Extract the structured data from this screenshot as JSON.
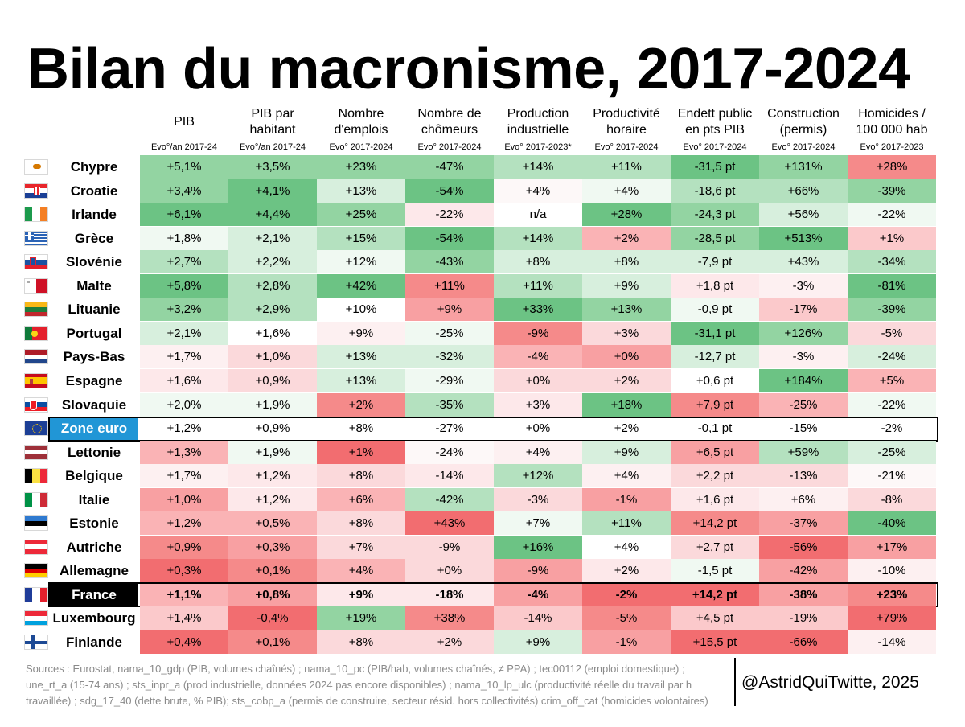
{
  "title": "Bilan du macronisme, 2017-2024",
  "chart_data": {
    "type": "table",
    "columns": [
      {
        "name": "PIB",
        "sub": "Evo°/an  2017-24"
      },
      {
        "name": "PIB par habitant",
        "sub": "Evo°/an  2017-24"
      },
      {
        "name": "Nombre d'emplois",
        "sub": "Evo° 2017-2024"
      },
      {
        "name": "Nombre de chômeurs",
        "sub": "Evo° 2017-2024"
      },
      {
        "name": "Production industrielle",
        "sub": "Evo° 2017-2023*"
      },
      {
        "name": "Productivité horaire",
        "sub": "Evo° 2017-2024"
      },
      {
        "name": "Endett public en pts PIB",
        "sub": "Evo° 2017-2024"
      },
      {
        "name": "Construction (permis)",
        "sub": "Evo° 2017-2024"
      },
      {
        "name": "Homicides / 100 000 hab",
        "sub": "Evo° 2017-2023"
      }
    ],
    "rows": [
      {
        "country": "Chypre",
        "flag": "cyprus-flag",
        "values": [
          "+5,1%",
          "+3,5%",
          "+23%",
          "-47%",
          "+14%",
          "+11%",
          "-31,5 pt",
          "+131%",
          "+28%"
        ],
        "colors": [
          "#93d4a2",
          "#93d4a2",
          "#93d4a2",
          "#93d4a2",
          "#b4e1bf",
          "#b4e1bf",
          "#6cc384",
          "#93d4a2",
          "#f58a8a"
        ]
      },
      {
        "country": "Croatie",
        "flag": "croatia-flag",
        "values": [
          "+3,4%",
          "+4,1%",
          "+13%",
          "-54%",
          "+4%",
          "+4%",
          "-18,6 pt",
          "+66%",
          "-39%"
        ],
        "colors": [
          "#93d4a2",
          "#6cc384",
          "#d7efdd",
          "#6cc384",
          "#fdf8f8",
          "#f0f9f2",
          "#b4e1bf",
          "#b4e1bf",
          "#93d4a2"
        ]
      },
      {
        "country": "Irlande",
        "flag": "ireland-flag",
        "values": [
          "+6,1%",
          "+4,4%",
          "+25%",
          "-22%",
          "n/a",
          "+28%",
          "-24,3 pt",
          "+56%",
          "-22%"
        ],
        "colors": [
          "#6cc384",
          "#6cc384",
          "#93d4a2",
          "#fde8ea",
          "#ffffff",
          "#6cc384",
          "#93d4a2",
          "#d7efdd",
          "#f0f9f2"
        ]
      },
      {
        "country": "Grèce",
        "flag": "greece-flag",
        "values": [
          "+1,8%",
          "+2,1%",
          "+15%",
          "-54%",
          "+14%",
          "+2%",
          "-28,5 pt",
          "+513%",
          "+1%"
        ],
        "colors": [
          "#f0f9f2",
          "#d7efdd",
          "#b4e1bf",
          "#6cc384",
          "#b4e1bf",
          "#fab3b5",
          "#93d4a2",
          "#6cc384",
          "#fbc9cb"
        ]
      },
      {
        "country": "Slovénie",
        "flag": "slovenia-flag",
        "values": [
          "+2,7%",
          "+2,2%",
          "+12%",
          "-43%",
          "+8%",
          "+8%",
          "-7,9 pt",
          "+43%",
          "-34%"
        ],
        "colors": [
          "#b4e1bf",
          "#d7efdd",
          "#f0f9f2",
          "#93d4a2",
          "#d7efdd",
          "#d7efdd",
          "#d7efdd",
          "#d7efdd",
          "#b4e1bf"
        ]
      },
      {
        "country": "Malte",
        "flag": "malta-flag",
        "values": [
          "+5,8%",
          "+2,8%",
          "+42%",
          "+11%",
          "+11%",
          "+9%",
          "+1,8 pt",
          "-3%",
          "-81%"
        ],
        "colors": [
          "#6cc384",
          "#b4e1bf",
          "#6cc384",
          "#f58a8a",
          "#b4e1bf",
          "#d7efdd",
          "#fde8ea",
          "#fdf0f1",
          "#6cc384"
        ]
      },
      {
        "country": "Lituanie",
        "flag": "lithuania-flag",
        "values": [
          "+3,2%",
          "+2,9%",
          "+10%",
          "+9%",
          "+33%",
          "+13%",
          "-0,9 pt",
          "-17%",
          "-39%"
        ],
        "colors": [
          "#93d4a2",
          "#b4e1bf",
          "#ffffff",
          "#f8a0a2",
          "#6cc384",
          "#93d4a2",
          "#f0f9f2",
          "#fbc9cb",
          "#93d4a2"
        ]
      },
      {
        "country": "Portugal",
        "flag": "portugal-flag",
        "values": [
          "+2,1%",
          "+1,6%",
          "+9%",
          "-25%",
          "-9%",
          "+3%",
          "-31,1 pt",
          "+126%",
          "-5%"
        ],
        "colors": [
          "#d7efdd",
          "#ffffff",
          "#fdf0f1",
          "#f0f9f2",
          "#f58a8a",
          "#fbd9db",
          "#6cc384",
          "#93d4a2",
          "#fbd9db"
        ]
      },
      {
        "country": "Pays-Bas",
        "flag": "netherlands-flag",
        "values": [
          "+1,7%",
          "+1,0%",
          "+13%",
          "-32%",
          "-4%",
          "+0%",
          "-12,7 pt",
          "-3%",
          "-24%"
        ],
        "colors": [
          "#fdf0f1",
          "#fbd9db",
          "#d7efdd",
          "#d7efdd",
          "#fab3b5",
          "#f8a0a2",
          "#d7efdd",
          "#fdf0f1",
          "#d7efdd"
        ]
      },
      {
        "country": "Espagne",
        "flag": "spain-flag",
        "values": [
          "+1,6%",
          "+0,9%",
          "+13%",
          "-29%",
          "+0%",
          "+2%",
          "+0,6 pt",
          "+184%",
          "+5%"
        ],
        "colors": [
          "#fde8ea",
          "#fbd9db",
          "#d7efdd",
          "#f0f9f2",
          "#fbd9db",
          "#fbd9db",
          "#ffffff",
          "#6cc384",
          "#fab3b5"
        ]
      },
      {
        "country": "Slovaquie",
        "flag": "slovakia-flag",
        "values": [
          "+2,0%",
          "+1,9%",
          "+2%",
          "-35%",
          "+3%",
          "+18%",
          "+7,9 pt",
          "-25%",
          "-22%"
        ],
        "colors": [
          "#f0f9f2",
          "#f0f9f2",
          "#f58a8a",
          "#b4e1bf",
          "#fde8ea",
          "#6cc384",
          "#f58a8a",
          "#fab3b5",
          "#f0f9f2"
        ]
      },
      {
        "country": "Zone euro",
        "flag": "eu-flag",
        "zone": true,
        "values": [
          "+1,2%",
          "+0,9%",
          "+8%",
          "-27%",
          "+0%",
          "+2%",
          "-0,1 pt",
          "-15%",
          "-2%"
        ],
        "colors": [
          "#ffffff",
          "#ffffff",
          "#ffffff",
          "#ffffff",
          "#ffffff",
          "#ffffff",
          "#ffffff",
          "#ffffff",
          "#ffffff"
        ]
      },
      {
        "country": "Lettonie",
        "flag": "latvia-flag",
        "values": [
          "+1,3%",
          "+1,9%",
          "+1%",
          "-24%",
          "+4%",
          "+9%",
          "+6,5 pt",
          "+59%",
          "-25%"
        ],
        "colors": [
          "#fab3b5",
          "#f0f9f2",
          "#f26d70",
          "#fdf8f8",
          "#fdf0f1",
          "#d7efdd",
          "#f8a0a2",
          "#b4e1bf",
          "#d7efdd"
        ]
      },
      {
        "country": "Belgique",
        "flag": "belgium-flag",
        "values": [
          "+1,7%",
          "+1,2%",
          "+8%",
          "-14%",
          "+12%",
          "+4%",
          "+2,2 pt",
          "-13%",
          "-21%"
        ],
        "colors": [
          "#fdf0f1",
          "#fde8ea",
          "#fbd9db",
          "#fde8ea",
          "#b4e1bf",
          "#fdf0f1",
          "#fbd9db",
          "#fbd9db",
          "#fdf8f8"
        ]
      },
      {
        "country": "Italie",
        "flag": "italy-flag",
        "values": [
          "+1,0%",
          "+1,2%",
          "+6%",
          "-42%",
          "-3%",
          "-1%",
          "+1,6 pt",
          "+6%",
          "-8%"
        ],
        "colors": [
          "#f8a0a2",
          "#fde8ea",
          "#fab3b5",
          "#b4e1bf",
          "#fbd9db",
          "#f8a0a2",
          "#fde8ea",
          "#fdf0f1",
          "#fbd9db"
        ]
      },
      {
        "country": "Estonie",
        "flag": "estonia-flag",
        "values": [
          "+1,2%",
          "+0,5%",
          "+8%",
          "+43%",
          "+7%",
          "+11%",
          "+14,2 pt",
          "-37%",
          "-40%"
        ],
        "colors": [
          "#fab3b5",
          "#fab3b5",
          "#fbd9db",
          "#f26d70",
          "#f0f9f2",
          "#b4e1bf",
          "#f58a8a",
          "#f8a0a2",
          "#6cc384"
        ]
      },
      {
        "country": "Autriche",
        "flag": "austria-flag",
        "values": [
          "+0,9%",
          "+0,3%",
          "+7%",
          "-9%",
          "+16%",
          "+4%",
          "+2,7 pt",
          "-56%",
          "+17%"
        ],
        "colors": [
          "#f58a8a",
          "#f8a0a2",
          "#fbd9db",
          "#fbd9db",
          "#6cc384",
          "#ffffff",
          "#fbd9db",
          "#f26d70",
          "#f8a0a2"
        ]
      },
      {
        "country": "Allemagne",
        "flag": "germany-flag",
        "values": [
          "+0,3%",
          "+0,1%",
          "+4%",
          "+0%",
          "-9%",
          "+2%",
          "-1,5 pt",
          "-42%",
          "-10%"
        ],
        "colors": [
          "#f26d70",
          "#f58a8a",
          "#fab3b5",
          "#fbd9db",
          "#f8a0a2",
          "#fde8ea",
          "#f0f9f2",
          "#f8a0a2",
          "#fdf0f1"
        ]
      },
      {
        "country": "France",
        "flag": "france-flag",
        "france": true,
        "values": [
          "+1,1%",
          "+0,8%",
          "+9%",
          "-18%",
          "-4%",
          "-2%",
          "+14,2 pt",
          "-38%",
          "+23%"
        ],
        "colors": [
          "#fab3b5",
          "#f8a0a2",
          "#fde8ea",
          "#fde8ea",
          "#f8a0a2",
          "#f26d70",
          "#f26d70",
          "#f8a0a2",
          "#f58a8a"
        ]
      },
      {
        "country": "Luxembourg",
        "flag": "luxembourg-flag",
        "values": [
          "+1,4%",
          "-0,4%",
          "+19%",
          "+38%",
          "-14%",
          "-5%",
          "+4,5 pt",
          "-19%",
          "+79%"
        ],
        "colors": [
          "#fbc9cb",
          "#f26d70",
          "#93d4a2",
          "#f58a8a",
          "#fbc9cb",
          "#f58a8a",
          "#fbc9cb",
          "#fbc9cb",
          "#f26d70"
        ]
      },
      {
        "country": "Finlande",
        "flag": "finland-flag",
        "values": [
          "+0,4%",
          "+0,1%",
          "+8%",
          "+2%",
          "+9%",
          "-1%",
          "+15,5 pt",
          "-66%",
          "-14%"
        ],
        "colors": [
          "#f26d70",
          "#f58a8a",
          "#fbd9db",
          "#fbd9db",
          "#d7efdd",
          "#f8a0a2",
          "#f26d70",
          "#f26d70",
          "#fdf0f1"
        ]
      }
    ]
  },
  "sources": "Sources : Eurostat, nama_10_gdp (PIB, volumes chaînés) ; nama_10_pc (PIB/hab, volumes chaînés, ≠ PPA) ; tec00112 (emploi domestique) ; une_rt_a (15-74 ans) ; sts_inpr_a (prod industrielle, données 2024 pas encore disponibles) ; nama_10_lp_ulc (productivité réelle du travail par h travaillée) ; sdg_17_40 (dette brute, % PIB); sts_cobp_a (permis de construire, secteur résid. hors collectivités) crim_off_cat (homicides volontaires)",
  "credit": "@AstridQuiTwitte, 2025"
}
